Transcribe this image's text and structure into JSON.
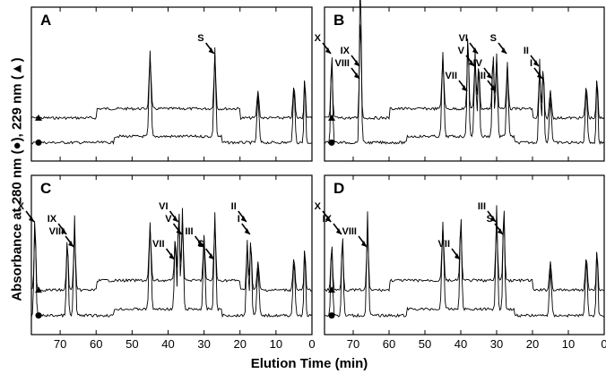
{
  "figure": {
    "y_axis_label": "Absorbance at 280 nm (●), 229 nm (▲)",
    "x_axis_label": "Elution Time (min)",
    "bottom_tick_labels": [
      "70",
      "60",
      "50",
      "40",
      "30",
      "20",
      "10",
      "0"
    ]
  },
  "chart_data": [
    {
      "panel": "A",
      "type": "line",
      "x_range": [
        78,
        0
      ],
      "xlabel": "Elution Time (min)",
      "series": [
        {
          "marker": "triangle",
          "wavelength_nm": 229
        },
        {
          "marker": "circle",
          "wavelength_nm": 280
        }
      ],
      "annotations": [
        {
          "label": "S",
          "x": 27
        }
      ]
    },
    {
      "panel": "B",
      "type": "line",
      "x_range": [
        78,
        0
      ],
      "xlabel": "Elution Time (min)",
      "series": [
        {
          "marker": "triangle",
          "wavelength_nm": 229
        },
        {
          "marker": "circle",
          "wavelength_nm": 280
        }
      ],
      "annotations": [
        {
          "label": "X",
          "x": 76
        },
        {
          "label": "IX",
          "x": 68
        },
        {
          "label": "VIII",
          "x": 68
        },
        {
          "label": "VII",
          "x": 38
        },
        {
          "label": "VI",
          "x": 35
        },
        {
          "label": "V",
          "x": 36
        },
        {
          "label": "IV",
          "x": 31
        },
        {
          "label": "III",
          "x": 30
        },
        {
          "label": "S",
          "x": 27
        },
        {
          "label": "II",
          "x": 18
        },
        {
          "label": "I",
          "x": 17
        }
      ]
    },
    {
      "panel": "C",
      "type": "line",
      "x_range": [
        78,
        0
      ],
      "xlabel": "Elution Time (min)",
      "series": [
        {
          "marker": "triangle",
          "wavelength_nm": 229
        },
        {
          "marker": "circle",
          "wavelength_nm": 280
        }
      ],
      "annotations": [
        {
          "label": "X",
          "x": 77
        },
        {
          "label": "IX",
          "x": 68
        },
        {
          "label": "VIII",
          "x": 66
        },
        {
          "label": "VII",
          "x": 38
        },
        {
          "label": "VI",
          "x": 37
        },
        {
          "label": "V",
          "x": 36
        },
        {
          "label": "III",
          "x": 30
        },
        {
          "label": "S",
          "x": 27
        },
        {
          "label": "II",
          "x": 18
        },
        {
          "label": "I",
          "x": 17
        }
      ]
    },
    {
      "panel": "D",
      "type": "line",
      "x_range": [
        78,
        0
      ],
      "xlabel": "Elution Time (min)",
      "series": [
        {
          "marker": "triangle",
          "wavelength_nm": 229
        },
        {
          "marker": "circle",
          "wavelength_nm": 280
        }
      ],
      "annotations": [
        {
          "label": "X",
          "x": 76
        },
        {
          "label": "IX",
          "x": 73
        },
        {
          "label": "VIII",
          "x": 66
        },
        {
          "label": "VII",
          "x": 40
        },
        {
          "label": "III",
          "x": 30
        },
        {
          "label": "S",
          "x": 28
        }
      ]
    }
  ]
}
